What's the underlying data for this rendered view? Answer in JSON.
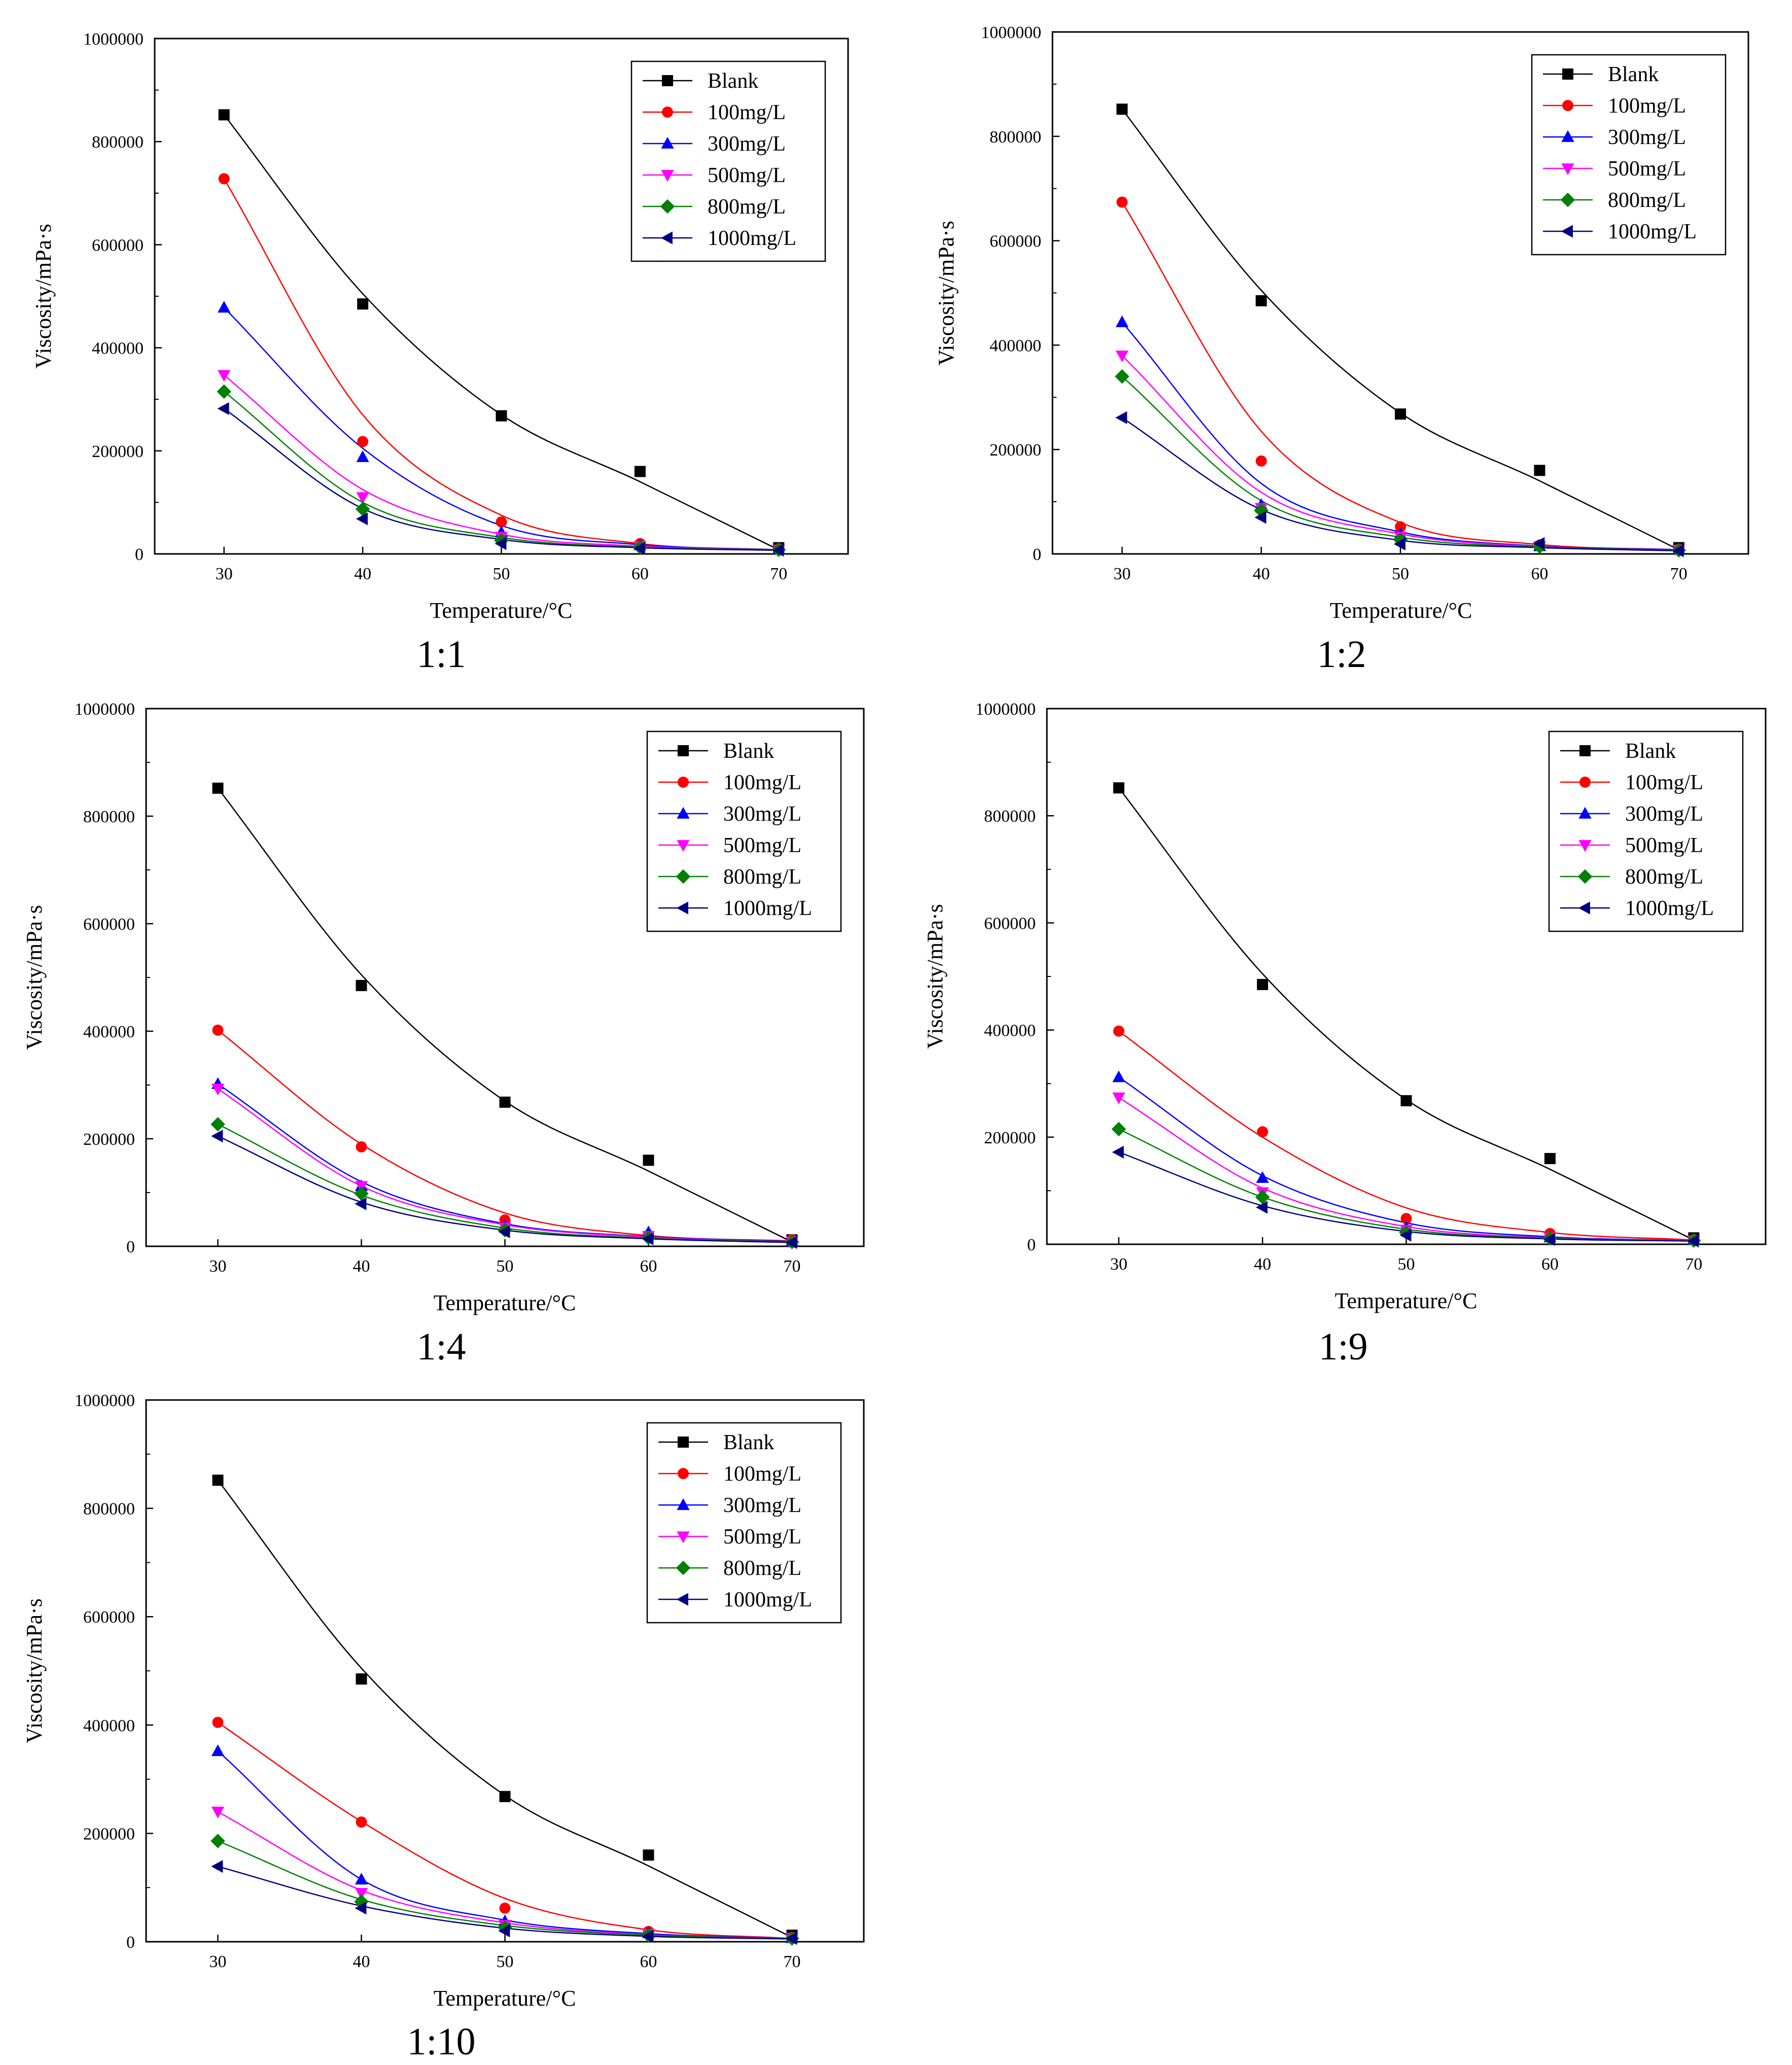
{
  "chart_data": [
    {
      "type": "scatter",
      "caption": "1:1",
      "xlabel": "Temperature/°C",
      "ylabel": "Viscosity/mPa·s",
      "xlim": [
        25,
        75
      ],
      "ylim": [
        0,
        1000000
      ],
      "x_ticks": [
        "30",
        "40",
        "50",
        "60",
        "70"
      ],
      "y_ticks": [
        "0",
        "200000",
        "400000",
        "600000",
        "800000",
        "1000000"
      ],
      "x": [
        30,
        40,
        50,
        60,
        70
      ],
      "legend_position": "top-right",
      "series": [
        {
          "name": "Blank",
          "values": [
            852000,
            485000,
            268000,
            160000,
            12000
          ],
          "fit": [
            852000,
            505000,
            270000,
            140000,
            8000
          ]
        },
        {
          "name": "100mg/L",
          "values": [
            728000,
            218000,
            62000,
            20000,
            10000
          ],
          "fit": [
            728000,
            270000,
            75000,
            20000,
            8000
          ]
        },
        {
          "name": "300mg/L",
          "values": [
            478000,
            188000,
            42000,
            17000,
            9000
          ],
          "fit": [
            478000,
            205000,
            55000,
            18000,
            8000
          ]
        },
        {
          "name": "500mg/L",
          "values": [
            347000,
            110000,
            33000,
            15000,
            8000
          ],
          "fit": [
            347000,
            125000,
            38000,
            15000,
            8000
          ]
        },
        {
          "name": "800mg/L",
          "values": [
            315000,
            87000,
            26000,
            13000,
            8000
          ],
          "fit": [
            315000,
            100000,
            32000,
            13000,
            8000
          ]
        },
        {
          "name": "1000mg/L",
          "values": [
            282000,
            68000,
            20000,
            11000,
            7000
          ],
          "fit": [
            282000,
            88000,
            28000,
            12000,
            7000
          ]
        }
      ]
    },
    {
      "type": "scatter",
      "caption": "1:2",
      "xlabel": "Temperature/°C",
      "ylabel": "Viscosity/mPa·s",
      "xlim": [
        25,
        75
      ],
      "ylim": [
        0,
        1000000
      ],
      "x_ticks": [
        "30",
        "40",
        "50",
        "60",
        "70"
      ],
      "y_ticks": [
        "0",
        "200000",
        "400000",
        "600000",
        "800000",
        "1000000"
      ],
      "x": [
        30,
        40,
        50,
        60,
        70
      ],
      "legend_position": "top-right",
      "series": [
        {
          "name": "Blank",
          "values": [
            852000,
            485000,
            268000,
            160000,
            12000
          ],
          "fit": [
            852000,
            505000,
            270000,
            140000,
            8000
          ]
        },
        {
          "name": "100mg/L",
          "values": [
            674000,
            178000,
            52000,
            17000,
            9000
          ],
          "fit": [
            674000,
            235000,
            60000,
            18000,
            8000
          ]
        },
        {
          "name": "300mg/L",
          "values": [
            444000,
            94000,
            38000,
            15000,
            8000
          ],
          "fit": [
            444000,
            135000,
            42000,
            15000,
            8000
          ]
        },
        {
          "name": "500mg/L",
          "values": [
            380000,
            88000,
            33000,
            15000,
            8000
          ],
          "fit": [
            380000,
            118000,
            38000,
            14000,
            7000
          ]
        },
        {
          "name": "800mg/L",
          "values": [
            340000,
            83000,
            27000,
            14000,
            7000
          ],
          "fit": [
            340000,
            102000,
            32000,
            13000,
            7000
          ]
        },
        {
          "name": "1000mg/L",
          "values": [
            261000,
            70000,
            19000,
            20000,
            6000
          ],
          "fit": [
            261000,
            85000,
            26000,
            12000,
            6000
          ]
        }
      ]
    },
    {
      "type": "scatter",
      "caption": "1:4",
      "xlabel": "Temperature/°C",
      "ylabel": "Viscosity/mPa·s",
      "xlim": [
        25,
        75
      ],
      "ylim": [
        0,
        1000000
      ],
      "x_ticks": [
        "30",
        "40",
        "50",
        "60",
        "70"
      ],
      "y_ticks": [
        "0",
        "200000",
        "400000",
        "600000",
        "800000",
        "1000000"
      ],
      "x": [
        30,
        40,
        50,
        60,
        70
      ],
      "legend_position": "top-right",
      "series": [
        {
          "name": "Blank",
          "values": [
            852000,
            485000,
            268000,
            160000,
            12000
          ],
          "fit": [
            852000,
            505000,
            270000,
            140000,
            8000
          ]
        },
        {
          "name": "100mg/L",
          "values": [
            402000,
            185000,
            49000,
            21000,
            12000
          ],
          "fit": [
            402000,
            190000,
            62000,
            20000,
            10000
          ]
        },
        {
          "name": "300mg/L",
          "values": [
            302000,
            112000,
            38000,
            26000,
            9000
          ],
          "fit": [
            302000,
            120000,
            42000,
            18000,
            9000
          ]
        },
        {
          "name": "500mg/L",
          "values": [
            293000,
            112000,
            35000,
            19000,
            9000
          ],
          "fit": [
            293000,
            112000,
            40000,
            17000,
            8000
          ]
        },
        {
          "name": "800mg/L",
          "values": [
            227000,
            98000,
            30000,
            16000,
            8000
          ],
          "fit": [
            227000,
            95000,
            34000,
            15000,
            8000
          ]
        },
        {
          "name": "1000mg/L",
          "values": [
            205000,
            79000,
            27000,
            14000,
            7000
          ],
          "fit": [
            205000,
            82000,
            30000,
            14000,
            7000
          ]
        }
      ]
    },
    {
      "type": "scatter",
      "caption": "1:9",
      "xlabel": "Temperature/°C",
      "ylabel": "Viscosity/mPa·s",
      "xlim": [
        25,
        75
      ],
      "ylim": [
        0,
        1000000
      ],
      "x_ticks": [
        "30",
        "40",
        "50",
        "60",
        "70"
      ],
      "y_ticks": [
        "0",
        "200000",
        "400000",
        "600000",
        "800000",
        "1000000"
      ],
      "x": [
        30,
        40,
        50,
        60,
        70
      ],
      "legend_position": "top-right",
      "series": [
        {
          "name": "Blank",
          "values": [
            852000,
            485000,
            268000,
            160000,
            12000
          ],
          "fit": [
            852000,
            505000,
            270000,
            140000,
            8000
          ]
        },
        {
          "name": "100mg/L",
          "values": [
            398000,
            210000,
            48000,
            20000,
            9000
          ],
          "fit": [
            398000,
            200000,
            68000,
            22000,
            8000
          ]
        },
        {
          "name": "300mg/L",
          "values": [
            312000,
            124000,
            32000,
            13000,
            8000
          ],
          "fit": [
            312000,
            128000,
            40000,
            14000,
            7000
          ]
        },
        {
          "name": "500mg/L",
          "values": [
            274000,
            97000,
            27000,
            12000,
            7000
          ],
          "fit": [
            274000,
            105000,
            33000,
            12000,
            7000
          ]
        },
        {
          "name": "800mg/L",
          "values": [
            215000,
            88000,
            22000,
            11000,
            7000
          ],
          "fit": [
            215000,
            88000,
            28000,
            11000,
            6000
          ]
        },
        {
          "name": "1000mg/L",
          "values": [
            172000,
            69000,
            17000,
            9000,
            6000
          ],
          "fit": [
            172000,
            72000,
            24000,
            10000,
            6000
          ]
        }
      ]
    },
    {
      "type": "scatter",
      "caption": "1:10",
      "xlabel": "Temperature/°C",
      "ylabel": "Viscosity/mPa·s",
      "xlim": [
        25,
        75
      ],
      "ylim": [
        0,
        1000000
      ],
      "x_ticks": [
        "30",
        "40",
        "50",
        "60",
        "70"
      ],
      "y_ticks": [
        "0",
        "200000",
        "400000",
        "600000",
        "800000",
        "1000000"
      ],
      "x": [
        30,
        40,
        50,
        60,
        70
      ],
      "legend_position": "top-right",
      "series": [
        {
          "name": "Blank",
          "values": [
            852000,
            485000,
            268000,
            160000,
            12000
          ],
          "fit": [
            852000,
            505000,
            270000,
            140000,
            8000
          ]
        },
        {
          "name": "100mg/L",
          "values": [
            405000,
            221000,
            62000,
            19000,
            8000
          ],
          "fit": [
            405000,
            222000,
            80000,
            22000,
            6000
          ]
        },
        {
          "name": "300mg/L",
          "values": [
            352000,
            115000,
            38000,
            16000,
            7000
          ],
          "fit": [
            352000,
            115000,
            40000,
            15000,
            6000
          ]
        },
        {
          "name": "500mg/L",
          "values": [
            240000,
            90000,
            31000,
            14000,
            7000
          ],
          "fit": [
            240000,
            95000,
            35000,
            13000,
            6000
          ]
        },
        {
          "name": "800mg/L",
          "values": [
            186000,
            74000,
            26000,
            12000,
            6000
          ],
          "fit": [
            186000,
            78000,
            30000,
            12000,
            6000
          ]
        },
        {
          "name": "1000mg/L",
          "values": [
            139000,
            62000,
            20000,
            10000,
            6000
          ],
          "fit": [
            139000,
            66000,
            25000,
            10000,
            5000
          ]
        }
      ]
    }
  ],
  "style": {
    "series_colors": [
      "#000000",
      "#ff0000",
      "#0000ff",
      "#ff00ff",
      "#008000",
      "#000080"
    ],
    "series_markers": [
      "square",
      "circle",
      "triangle-up",
      "triangle-down",
      "diamond",
      "triangle-left"
    ]
  }
}
